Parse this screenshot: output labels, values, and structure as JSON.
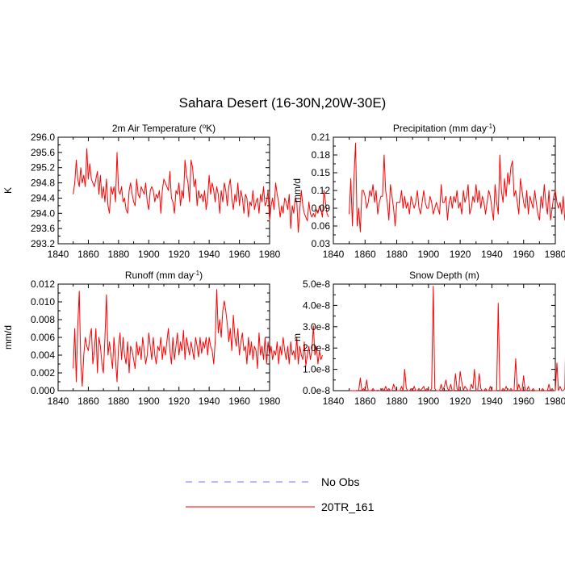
{
  "figure": {
    "title": "Sahara Desert (16-30N,20W-30E)"
  },
  "legend": [
    {
      "label": "No Obs",
      "color": "#6f6fff",
      "dashed": true
    },
    {
      "label": "20TR_161",
      "color": "#ff0000",
      "dashed": false
    }
  ],
  "chart_data": [
    {
      "type": "line",
      "title": "2m Air Temperature (oK)",
      "title_parts": {
        "main": "2m Air Temperature (",
        "sup": "o",
        "tail": "K)"
      },
      "ylabel": "K",
      "xlim": [
        1840,
        1980
      ],
      "xticks": [
        "1840",
        "1860",
        "1880",
        "1900",
        "1920",
        "1940",
        "1960",
        "1980"
      ],
      "ylim": [
        293.2,
        296.0
      ],
      "yticks": [
        "293.2",
        "293.6",
        "294.0",
        "294.4",
        "294.8",
        "295.2",
        "295.6",
        "296.0"
      ],
      "series": [
        {
          "name": "20TR_161",
          "color": "#ff0000",
          "x_start": 1850,
          "x_step": 1,
          "values": [
            294.5,
            294.8,
            295.4,
            294.9,
            294.7,
            295.2,
            294.8,
            295.0,
            294.7,
            295.7,
            294.9,
            295.3,
            294.9,
            294.8,
            294.7,
            294.9,
            295.1,
            294.5,
            295.0,
            294.4,
            294.7,
            294.3,
            294.9,
            294.2,
            294.0,
            294.7,
            294.5,
            294.7,
            294.3,
            295.6,
            294.6,
            294.5,
            294.7,
            294.3,
            294.4,
            294.1,
            294.0,
            294.6,
            294.8,
            294.5,
            294.3,
            294.2,
            294.9,
            294.5,
            294.4,
            294.7,
            294.6,
            294.5,
            294.8,
            294.3,
            294.1,
            294.6,
            294.7,
            294.6,
            294.3,
            294.5,
            294.4,
            294.6,
            294.0,
            294.6,
            294.9,
            294.8,
            294.7,
            294.6,
            295.1,
            294.4,
            294.3,
            294.0,
            294.6,
            294.5,
            294.8,
            294.2,
            294.6,
            294.4,
            295.4,
            295.0,
            294.8,
            294.3,
            295.4,
            295.2,
            294.7,
            294.9,
            294.2,
            294.6,
            294.4,
            294.5,
            294.3,
            294.6,
            294.1,
            294.4,
            295.0,
            294.5,
            294.8,
            294.6,
            294.3,
            294.7,
            294.5,
            294.0,
            294.6,
            294.3,
            294.8,
            294.6,
            294.2,
            294.7,
            294.9,
            294.4,
            294.1,
            294.5,
            294.3,
            294.8,
            294.2,
            294.6,
            294.4,
            294.0,
            294.5,
            294.4,
            293.9,
            294.3,
            294.2,
            294.6,
            294.1,
            294.3,
            294.4,
            294.0,
            294.5,
            294.3,
            294.7,
            294.2,
            294.3,
            294.6,
            293.8,
            294.2,
            294.4,
            294.1,
            294.8,
            294.5,
            294.3,
            293.9,
            294.2,
            294.0,
            294.4,
            294.3,
            294.1,
            294.5,
            293.6,
            294.2,
            294.0,
            294.4,
            294.3,
            293.5,
            294.1,
            294.6,
            294.2,
            294.0,
            293.9,
            293.8,
            294.3,
            294.0,
            293.9,
            294.0,
            293.9,
            294.1,
            294.0,
            294.2,
            294.1,
            293.9,
            294.6,
            294.3,
            294.0,
            293.9
          ]
        }
      ]
    },
    {
      "type": "line",
      "title": "Precipitation (mm day-1)",
      "title_parts": {
        "main": "Precipitation (mm day",
        "sup": "-1",
        "tail": ")"
      },
      "ylabel": "mm/d",
      "xlim": [
        1840,
        1980
      ],
      "xticks": [
        "1840",
        "1860",
        "1880",
        "1900",
        "1920",
        "1940",
        "1960",
        "1980"
      ],
      "ylim": [
        0.03,
        0.21
      ],
      "yticks": [
        "0.03",
        "0.06",
        "0.09",
        "0.12",
        "0.15",
        "0.18",
        "0.21"
      ],
      "series": [
        {
          "name": "20TR_161",
          "color": "#ff0000",
          "x_start": 1850,
          "x_step": 1,
          "values": [
            0.08,
            0.14,
            0.06,
            0.14,
            0.2,
            0.06,
            0.09,
            0.05,
            0.12,
            0.12,
            0.11,
            0.09,
            0.1,
            0.12,
            0.11,
            0.13,
            0.1,
            0.12,
            0.08,
            0.1,
            0.11,
            0.11,
            0.18,
            0.12,
            0.1,
            0.07,
            0.13,
            0.11,
            0.09,
            0.06,
            0.1,
            0.1,
            0.1,
            0.12,
            0.09,
            0.11,
            0.09,
            0.1,
            0.08,
            0.11,
            0.1,
            0.09,
            0.1,
            0.12,
            0.09,
            0.08,
            0.1,
            0.12,
            0.1,
            0.09,
            0.09,
            0.11,
            0.1,
            0.08,
            0.09,
            0.1,
            0.09,
            0.08,
            0.13,
            0.1,
            0.1,
            0.11,
            0.07,
            0.1,
            0.11,
            0.09,
            0.11,
            0.1,
            0.12,
            0.09,
            0.1,
            0.08,
            0.12,
            0.1,
            0.11,
            0.13,
            0.08,
            0.09,
            0.11,
            0.1,
            0.13,
            0.1,
            0.12,
            0.09,
            0.11,
            0.1,
            0.08,
            0.1,
            0.12,
            0.11,
            0.09,
            0.07,
            0.13,
            0.1,
            0.08,
            0.18,
            0.12,
            0.1,
            0.14,
            0.11,
            0.15,
            0.13,
            0.16,
            0.17,
            0.11,
            0.12,
            0.1,
            0.08,
            0.14,
            0.12,
            0.1,
            0.09,
            0.12,
            0.08,
            0.11,
            0.1,
            0.09,
            0.12,
            0.1,
            0.08,
            0.07,
            0.11,
            0.09,
            0.13,
            0.1,
            0.08,
            0.12,
            0.07,
            0.09,
            0.11,
            0.12,
            0.1,
            0.09,
            0.1,
            0.08,
            0.11,
            0.07,
            0.1,
            0.09,
            0.1,
            0.11,
            0.1,
            0.08,
            0.1,
            0.09,
            0.11,
            0.09,
            0.13,
            0.07,
            0.09,
            0.08,
            0.11,
            0.09,
            0.1,
            0.08,
            0.09,
            0.07,
            0.12,
            0.09,
            0.1,
            0.08,
            0.1,
            0.09,
            0.14,
            0.1,
            0.11
          ]
        }
      ]
    },
    {
      "type": "line",
      "title": "Runoff (mm day-1)",
      "title_parts": {
        "main": "Runoff (mm day",
        "sup": "-1",
        "tail": ")"
      },
      "ylabel": "mm/d",
      "xlim": [
        1840,
        1980
      ],
      "xticks": [
        "1840",
        "1860",
        "1880",
        "1900",
        "1920",
        "1940",
        "1960",
        "1980"
      ],
      "ylim": [
        0.0,
        0.012
      ],
      "yticks": [
        "0.000",
        "0.002",
        "0.004",
        "0.006",
        "0.008",
        "0.010",
        "0.012"
      ],
      "series": [
        {
          "name": "20TR_161",
          "color": "#ff0000",
          "x_start": 1850,
          "x_step": 1,
          "values": [
            0.0025,
            0.007,
            0.001,
            0.0072,
            0.0112,
            0.003,
            0.0005,
            0.004,
            0.006,
            0.005,
            0.0045,
            0.006,
            0.007,
            0.003,
            0.0045,
            0.007,
            0.002,
            0.006,
            0.005,
            0.003,
            0.002,
            0.006,
            0.0108,
            0.004,
            0.0055,
            0.004,
            0.0025,
            0.006,
            0.0035,
            0.001,
            0.005,
            0.0065,
            0.0035,
            0.006,
            0.004,
            0.003,
            0.0055,
            0.002,
            0.005,
            0.0045,
            0.0035,
            0.0025,
            0.0055,
            0.004,
            0.005,
            0.0035,
            0.006,
            0.0045,
            0.003,
            0.004,
            0.0065,
            0.005,
            0.0035,
            0.006,
            0.004,
            0.003,
            0.005,
            0.0045,
            0.006,
            0.0035,
            0.005,
            0.004,
            0.0055,
            0.007,
            0.0045,
            0.003,
            0.006,
            0.0035,
            0.005,
            0.0065,
            0.004,
            0.0055,
            0.0045,
            0.0068,
            0.0035,
            0.006,
            0.005,
            0.004,
            0.0055,
            0.0045,
            0.0035,
            0.006,
            0.005,
            0.0038,
            0.006,
            0.0042,
            0.0055,
            0.0048,
            0.006,
            0.004,
            0.006,
            0.005,
            0.0045,
            0.003,
            0.0055,
            0.0114,
            0.0065,
            0.008,
            0.006,
            0.009,
            0.0101,
            0.009,
            0.0075,
            0.0055,
            0.007,
            0.0045,
            0.0085,
            0.006,
            0.005,
            0.007,
            0.004,
            0.0055,
            0.0065,
            0.0045,
            0.005,
            0.003,
            0.006,
            0.004,
            0.0055,
            0.0035,
            0.005,
            0.0045,
            0.0025,
            0.0065,
            0.004,
            0.005,
            0.0035,
            0.006,
            0.003,
            0.0055,
            0.004,
            0.005,
            0.0035,
            0.0045,
            0.004,
            0.0055,
            0.003,
            0.005,
            0.004,
            0.006,
            0.0045,
            0.0035,
            0.005,
            0.003,
            0.0055,
            0.004,
            0.0045,
            0.0035,
            0.006,
            0.003,
            0.005,
            0.004,
            0.0035,
            0.0055,
            0.0028,
            0.004,
            0.005,
            0.0035,
            0.0045,
            0.0073,
            0.004,
            0.005,
            0.003,
            0.0045,
            0.0035,
            0.004
          ]
        }
      ]
    },
    {
      "type": "line",
      "title": "Snow Depth (m)",
      "title_parts": {
        "main": "Snow Depth (m)",
        "sup": "",
        "tail": ""
      },
      "ylabel": "m",
      "xlim": [
        1840,
        1980
      ],
      "xticks": [
        "1840",
        "1860",
        "1880",
        "1900",
        "1920",
        "1940",
        "1960",
        "1980"
      ],
      "ylim": [
        0.0,
        5e-08
      ],
      "yticks": [
        "0.0e-8",
        "1.0e-8",
        "2.0e-8",
        "3.0e-8",
        "4.0e-8",
        "5.0e-8"
      ],
      "series": [
        {
          "name": "20TR_161",
          "color": "#ff0000",
          "x_start": 1850,
          "x_step": 1,
          "values": [
            0,
            0,
            0,
            0,
            0,
            1e-10,
            0,
            6e-09,
            0,
            1e-09,
            0,
            5e-09,
            0,
            0,
            0,
            1e-09,
            0,
            0,
            2e-10,
            0,
            0,
            1e-09,
            0,
            2e-09,
            0,
            1e-09,
            0,
            0,
            3e-09,
            1e-09,
            0,
            0,
            0,
            2e-09,
            0,
            1e-08,
            1e-09,
            0,
            0,
            1e-09,
            0,
            2e-09,
            0,
            0,
            1e-09,
            0,
            1e-09,
            2e-09,
            0,
            1e-09,
            0,
            0,
            1e-09,
            4.9e-08,
            1e-09,
            0,
            0,
            0,
            3e-09,
            0,
            2e-09,
            5e-09,
            1e-09,
            0,
            3e-09,
            0,
            0,
            8e-09,
            1e-09,
            0,
            9e-09,
            4e-09,
            0,
            2e-09,
            1e-09,
            0,
            0,
            3e-09,
            1e-09,
            1e-08,
            0,
            0,
            8e-09,
            1e-09,
            0,
            0,
            1e-09,
            0,
            0,
            2e-09,
            0,
            0,
            0,
            0,
            4.1e-08,
            0,
            0,
            1e-09,
            0,
            2e-09,
            0,
            0,
            1e-09,
            0,
            0,
            1.5e-08,
            0,
            3e-09,
            0,
            0,
            7e-09,
            0,
            0,
            2e-09,
            0,
            0,
            1e-09,
            0,
            0,
            0,
            0,
            0,
            1e-09,
            0,
            0,
            0,
            3e-09,
            0,
            1e-09,
            0,
            0,
            1.3e-08,
            0,
            2e-09,
            0,
            0,
            1e-09,
            4.4e-08,
            0,
            0,
            2.5e-08,
            0,
            3e-09,
            0,
            1e-09,
            0,
            0,
            0,
            0,
            0,
            0,
            0,
            0,
            0,
            0,
            0,
            0,
            0,
            0,
            0,
            0,
            0,
            0,
            0,
            0,
            0,
            0,
            0,
            0
          ]
        }
      ]
    }
  ]
}
